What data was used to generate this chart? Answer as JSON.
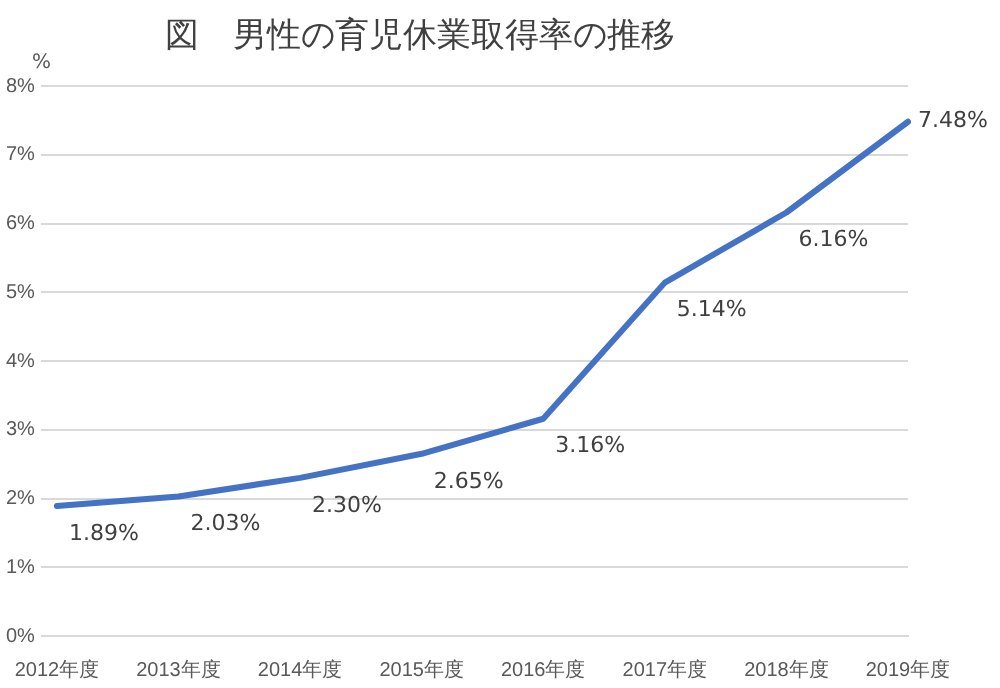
{
  "chart_data": {
    "type": "line",
    "title": "図　男性の育児休業取得率の推移",
    "ylabel": "%",
    "categories": [
      "2012年度",
      "2013年度",
      "2014年度",
      "2015年度",
      "2016年度",
      "2017年度",
      "2018年度",
      "2019年度"
    ],
    "series": [
      {
        "color": "#4472c4",
        "values": [
          1.89,
          2.03,
          2.3,
          2.65,
          3.16,
          5.14,
          6.16,
          7.48
        ],
        "value_labels": [
          "1.89%",
          "2.03%",
          "2.30%",
          "2.65%",
          "3.16%",
          "5.14%",
          "6.16%",
          "7.48%"
        ]
      }
    ],
    "ylim": [
      0,
      8
    ],
    "yticks": [
      {
        "value": 0,
        "label": "0%"
      },
      {
        "value": 1,
        "label": "1%"
      },
      {
        "value": 2,
        "label": "2%"
      },
      {
        "value": 3,
        "label": "3%"
      },
      {
        "value": 4,
        "label": "4%"
      },
      {
        "value": 5,
        "label": "5%"
      },
      {
        "value": 6,
        "label": "6%"
      },
      {
        "value": 7,
        "label": "7%"
      },
      {
        "value": 8,
        "label": "8%"
      }
    ],
    "grid": "y",
    "marker": "none",
    "line_style": "solid",
    "legend": false
  }
}
